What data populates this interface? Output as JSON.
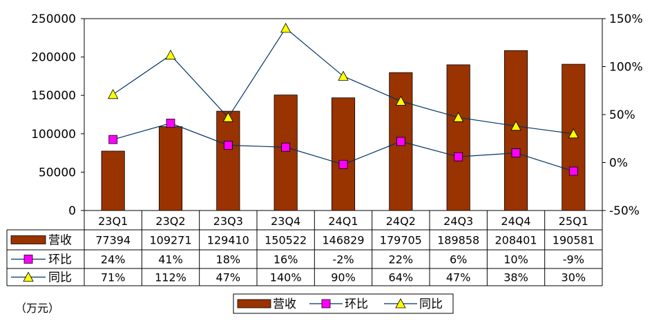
{
  "chart_data": {
    "type": "bar",
    "categories": [
      "23Q1",
      "23Q2",
      "23Q3",
      "23Q4",
      "24Q1",
      "24Q2",
      "24Q3",
      "24Q4",
      "25Q1"
    ],
    "series": [
      {
        "name": "营收",
        "kind": "bar",
        "axis": "left",
        "color": "#993300",
        "values": [
          77394,
          109271,
          129410,
          150522,
          146829,
          179705,
          189858,
          208401,
          190581
        ],
        "labels": [
          "77394",
          "109271",
          "129410",
          "150522",
          "146829",
          "179705",
          "189858",
          "208401",
          "190581"
        ]
      },
      {
        "name": "环比",
        "kind": "line",
        "axis": "right",
        "color": "#003366",
        "marker": "square",
        "marker_color": "#ff00ff",
        "values": [
          24,
          41,
          18,
          16,
          -2,
          22,
          6,
          10,
          -9
        ],
        "labels": [
          "24%",
          "41%",
          "18%",
          "16%",
          "-2%",
          "22%",
          "6%",
          "10%",
          "-9%"
        ]
      },
      {
        "name": "同比",
        "kind": "line",
        "axis": "right",
        "color": "#003366",
        "marker": "triangle",
        "marker_color": "#ffff00",
        "values": [
          71,
          112,
          47,
          140,
          90,
          64,
          47,
          38,
          30
        ],
        "labels": [
          "71%",
          "112%",
          "47%",
          "140%",
          "90%",
          "64%",
          "47%",
          "38%",
          "30%"
        ]
      }
    ],
    "y_left": {
      "min": 0,
      "max": 250000,
      "ticks": [
        "0",
        "50000",
        "100000",
        "150000",
        "200000",
        "250000"
      ]
    },
    "y_right": {
      "min": -50,
      "max": 150,
      "ticks": [
        "-50%",
        "0%",
        "50%",
        "100%",
        "150%"
      ]
    },
    "unit_label": "（万元）",
    "legend": {
      "position": "bottom",
      "items": [
        "营收",
        "环比",
        "同比"
      ]
    },
    "data_table": true,
    "grid": false
  }
}
